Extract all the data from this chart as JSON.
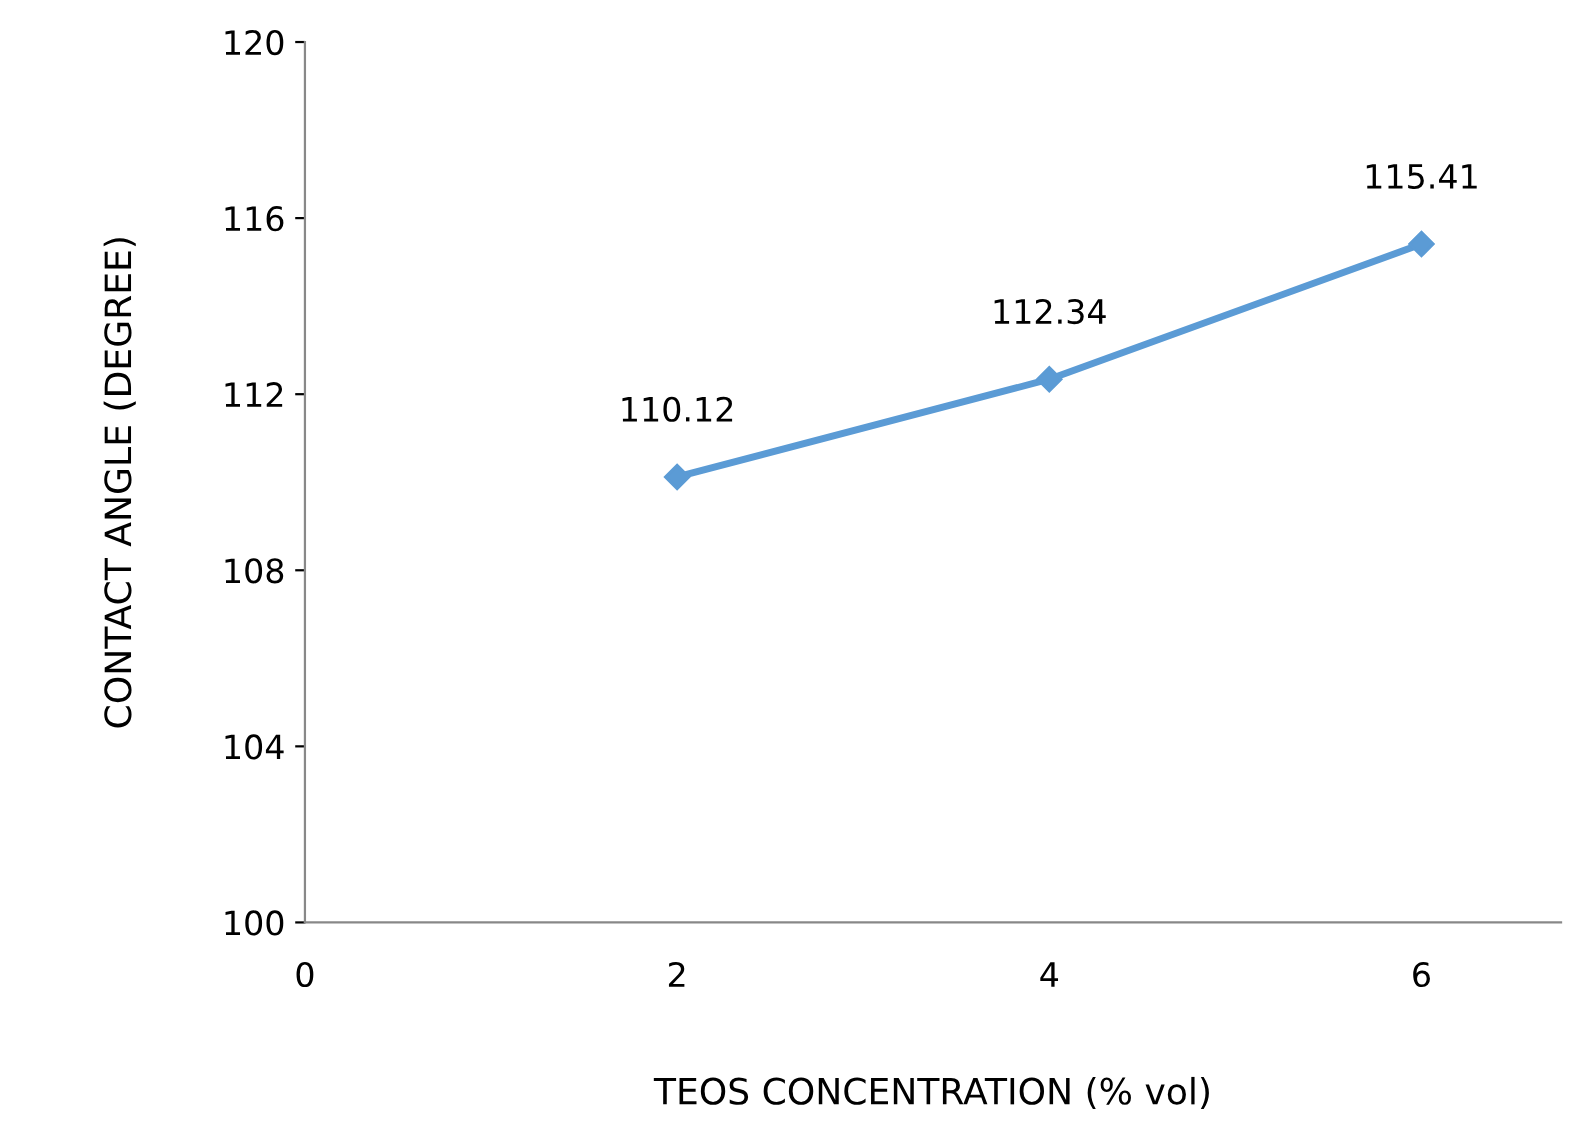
{
  "chart_data": {
    "type": "line",
    "xlabel": "TEOS CONCENTRATION (% vol)",
    "ylabel": "CONTACT ANGLE (DEGREE)",
    "x": [
      2,
      4,
      6
    ],
    "series": [
      {
        "color": "#5b9bd5",
        "values": [
          110.12,
          112.34,
          115.41
        ]
      }
    ],
    "xlim": [
      0,
      6.75
    ],
    "xticks": [
      0,
      2,
      4,
      6
    ],
    "ylim": [
      100,
      120
    ],
    "yticks": [
      100,
      104,
      108,
      112,
      116,
      120
    ],
    "marker": "diamond",
    "line_style": "solid",
    "data_labels": true,
    "grid": false,
    "legend": false
  }
}
